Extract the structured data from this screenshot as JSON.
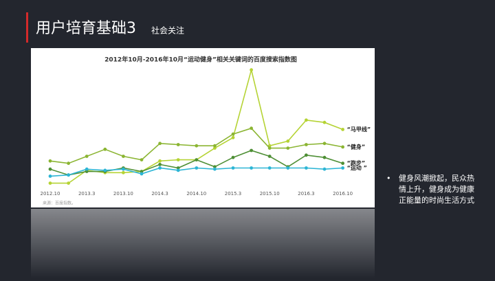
{
  "header": {
    "title": "用户培育基础3",
    "subtitle": "社会关注"
  },
  "bullet": "健身风潮掀起，民众热情上升，健身成为健康正能量的时尚生活方式",
  "chart_data": {
    "type": "line",
    "title": "2012年10月-2016年10月“运动健身”相关关键词的百度搜索指数图",
    "source": "来源：百度指数。",
    "categories": [
      "2012.10",
      null,
      "2013.3",
      null,
      "2013.10",
      null,
      "2014.3",
      null,
      "2014.10",
      null,
      "2015.3",
      null,
      "2015.10",
      null,
      "2016.3",
      null,
      "2016.10"
    ],
    "ylim": [
      0,
      100
    ],
    "series": [
      {
        "name": "“马甲线”",
        "color": "#b5d334",
        "values": [
          2,
          2,
          13,
          11,
          11,
          12,
          21,
          22,
          22,
          32,
          41,
          99,
          34,
          38,
          56,
          54,
          48
        ]
      },
      {
        "name": "“健身”",
        "color": "#8bb532",
        "values": [
          21,
          19,
          25,
          31,
          25,
          22,
          36,
          35,
          34,
          34,
          44,
          49,
          32,
          32,
          35,
          36,
          33
        ]
      },
      {
        "name": "“跑步”",
        "color": "#4e8f35",
        "values": [
          14,
          9,
          12,
          12,
          15,
          12,
          18,
          15,
          22,
          16,
          24,
          30,
          25,
          16,
          26,
          24,
          19
        ]
      },
      {
        "name": "“运动 ”",
        "color": "#2cb5d5",
        "values": [
          8,
          9,
          14,
          13,
          14,
          10,
          15,
          13,
          15,
          14,
          15,
          15,
          15,
          15,
          15,
          14,
          15
        ]
      }
    ]
  }
}
